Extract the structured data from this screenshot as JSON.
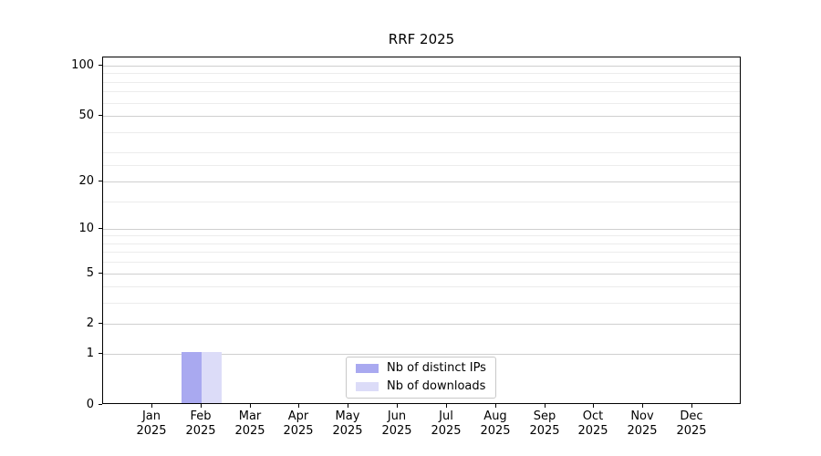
{
  "chart_data": {
    "type": "bar",
    "title": "RRF 2025",
    "x_categories": [
      "Jan",
      "Feb",
      "Mar",
      "Apr",
      "May",
      "Jun",
      "Jul",
      "Aug",
      "Sep",
      "Oct",
      "Nov",
      "Dec"
    ],
    "x_year": "2025",
    "xlabel": "",
    "ylabel": "",
    "y_scale": "log1p",
    "ylim": [
      0,
      112
    ],
    "y_major_ticks": [
      0,
      1,
      2,
      5,
      10,
      20,
      50,
      100
    ],
    "y_minor_ticks": [
      3,
      4,
      6,
      7,
      8,
      9,
      15,
      25,
      30,
      40,
      60,
      70,
      80,
      90
    ],
    "grid": true,
    "legend_position": "bottom-center",
    "series": [
      {
        "name": "Nb of distinct IPs",
        "color": "#a9a9f0",
        "values": [
          0,
          1,
          0,
          0,
          0,
          0,
          0,
          0,
          0,
          0,
          0,
          0
        ]
      },
      {
        "name": "Nb of downloads",
        "color": "#dcdcf8",
        "values": [
          0,
          1,
          0,
          0,
          0,
          0,
          0,
          0,
          0,
          0,
          0,
          0
        ]
      }
    ]
  }
}
